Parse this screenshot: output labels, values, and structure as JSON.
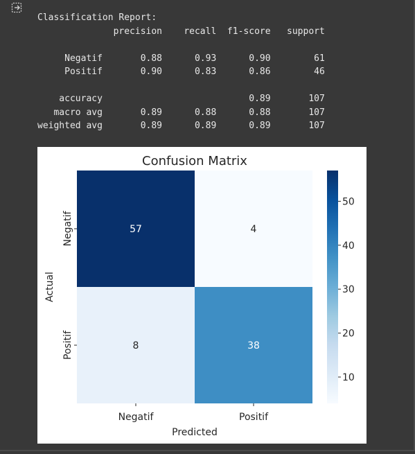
{
  "output_icon": "output-collapse-icon",
  "report": {
    "lines": [
      "Classification Report:",
      "              precision    recall  f1-score   support",
      "",
      "     Negatif       0.88      0.93      0.90        61",
      "     Positif       0.90      0.83      0.86        46",
      "",
      "    accuracy                           0.89       107",
      "   macro avg       0.89      0.88      0.88       107",
      "weighted avg       0.89      0.89      0.89       107"
    ]
  },
  "colors": {
    "background": "#383838",
    "text": "#e8e8e8",
    "cell_high": "#08306b",
    "cell_mid": "#3e8ec4",
    "cell_low": "#e6eef8",
    "cell_min": "#f7fbff"
  },
  "chart_data": {
    "type": "heatmap",
    "title": "Confusion Matrix",
    "xlabel": "Predicted",
    "ylabel": "Actual",
    "x_categories": [
      "Negatif",
      "Positif"
    ],
    "y_categories": [
      "Negatif",
      "Positif"
    ],
    "values": [
      [
        57,
        4
      ],
      [
        8,
        38
      ]
    ],
    "colormap": "Blues",
    "colorbar": {
      "ticks": [
        "10",
        "20",
        "30",
        "40",
        "50"
      ],
      "range": [
        4,
        57
      ]
    },
    "annotation_colors": [
      [
        "#ffffff",
        "#262626"
      ],
      [
        "#262626",
        "#ffffff"
      ]
    ]
  }
}
